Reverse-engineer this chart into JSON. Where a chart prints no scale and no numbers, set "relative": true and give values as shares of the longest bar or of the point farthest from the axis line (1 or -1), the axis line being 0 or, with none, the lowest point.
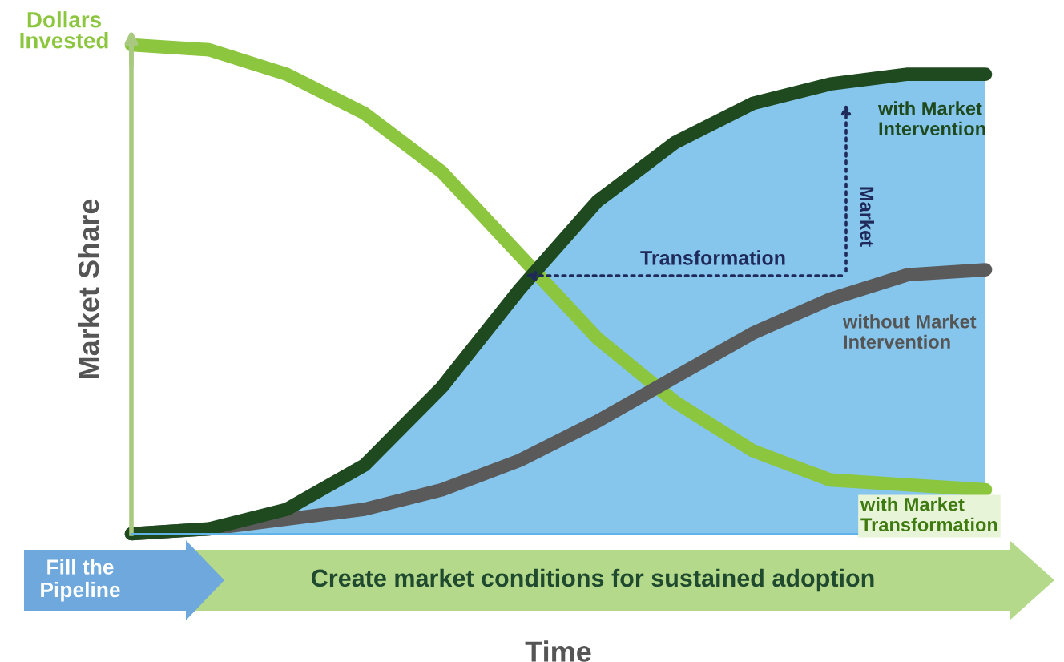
{
  "chart_data": {
    "type": "line",
    "relative": true,
    "ylabel": "Market Share",
    "xlabel": "Time",
    "categories": [
      null,
      null,
      null,
      null,
      null,
      null,
      null,
      null,
      null,
      null,
      null,
      null
    ],
    "series": [
      {
        "color": "#8cc63f",
        "values": [
          1.0,
          0.99,
          0.94,
          0.86,
          0.74,
          0.57,
          0.4,
          0.27,
          0.17,
          0.11,
          0.1,
          0.09
        ]
      },
      {
        "color": "#5a5a5a",
        "values": [
          0,
          0.01,
          0.03,
          0.05,
          0.09,
          0.15,
          0.23,
          0.32,
          0.41,
          0.48,
          0.53,
          0.54
        ]
      },
      {
        "type": "area",
        "color": "#5fb3e6",
        "values": [
          0,
          0.01,
          0.05,
          0.14,
          0.3,
          0.5,
          0.68,
          0.8,
          0.88,
          0.92,
          0.94,
          0.94
        ]
      }
    ],
    "annotations": [
      "Dollars Invested",
      "with Market Intervention",
      "without Market Intervention",
      "with Market Transformation",
      "Market",
      "Transformation",
      "Fill the Pipeline",
      "Create market conditions for sustained adoption"
    ],
    "marker": "none"
  }
}
